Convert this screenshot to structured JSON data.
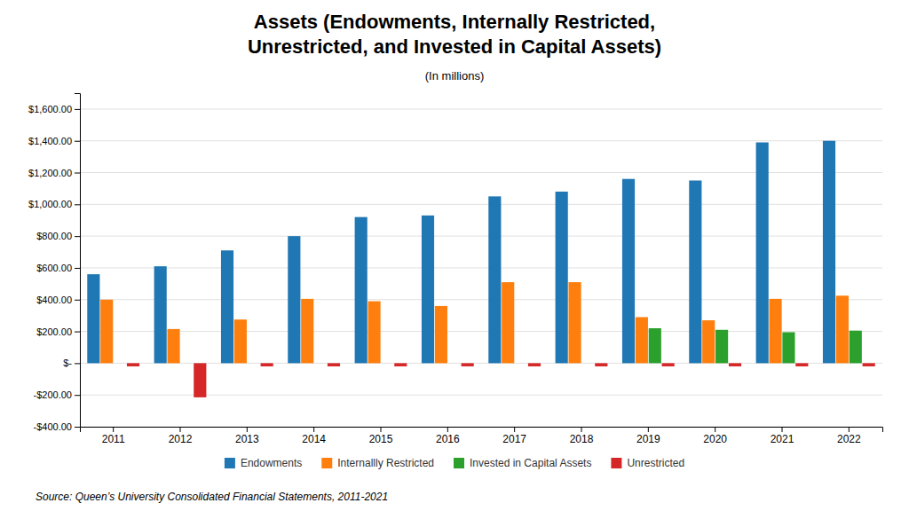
{
  "chart_data": {
    "type": "bar",
    "title": "Assets (Endowments, Internally Restricted,\nUnrestricted, and Invested in Capital Assets)",
    "subtitle": "(In millions)",
    "source": "Source: Queen’s University Consolidated Financial Statements, 2011-2021",
    "categories": [
      "2011",
      "2012",
      "2013",
      "2014",
      "2015",
      "2016",
      "2017",
      "2018",
      "2019",
      "2020",
      "2021",
      "2022"
    ],
    "series": [
      {
        "name": "Endowments",
        "values": [
          560,
          610,
          710,
          800,
          920,
          930,
          1050,
          1080,
          1160,
          1150,
          1390,
          1400
        ]
      },
      {
        "name": "Internallly Restricted",
        "values": [
          400,
          215,
          275,
          405,
          390,
          360,
          510,
          510,
          290,
          270,
          405,
          425
        ]
      },
      {
        "name": "Invested in Capital Assets",
        "values": [
          0,
          0,
          0,
          0,
          0,
          0,
          0,
          0,
          220,
          210,
          195,
          205
        ]
      },
      {
        "name": "Unrestricted",
        "values": [
          -20,
          -215,
          -20,
          -20,
          -20,
          -20,
          -20,
          -20,
          -20,
          -20,
          -20,
          -20
        ]
      }
    ],
    "ylim": [
      -400,
      1700
    ],
    "yticks": [
      {
        "value": -400,
        "label": "-$400.00"
      },
      {
        "value": -200,
        "label": "-$200.00"
      },
      {
        "value": 0,
        "label": "$-"
      },
      {
        "value": 200,
        "label": "$200.00"
      },
      {
        "value": 400,
        "label": "$400.00"
      },
      {
        "value": 600,
        "label": "$600.00"
      },
      {
        "value": 800,
        "label": "$800.00"
      },
      {
        "value": 1000,
        "label": "$1,000.00"
      },
      {
        "value": 1200,
        "label": "$1,200.00"
      },
      {
        "value": 1400,
        "label": "$1,400.00"
      },
      {
        "value": 1600,
        "label": "$1,600.00"
      }
    ],
    "grid": true,
    "legend": "bottom"
  }
}
